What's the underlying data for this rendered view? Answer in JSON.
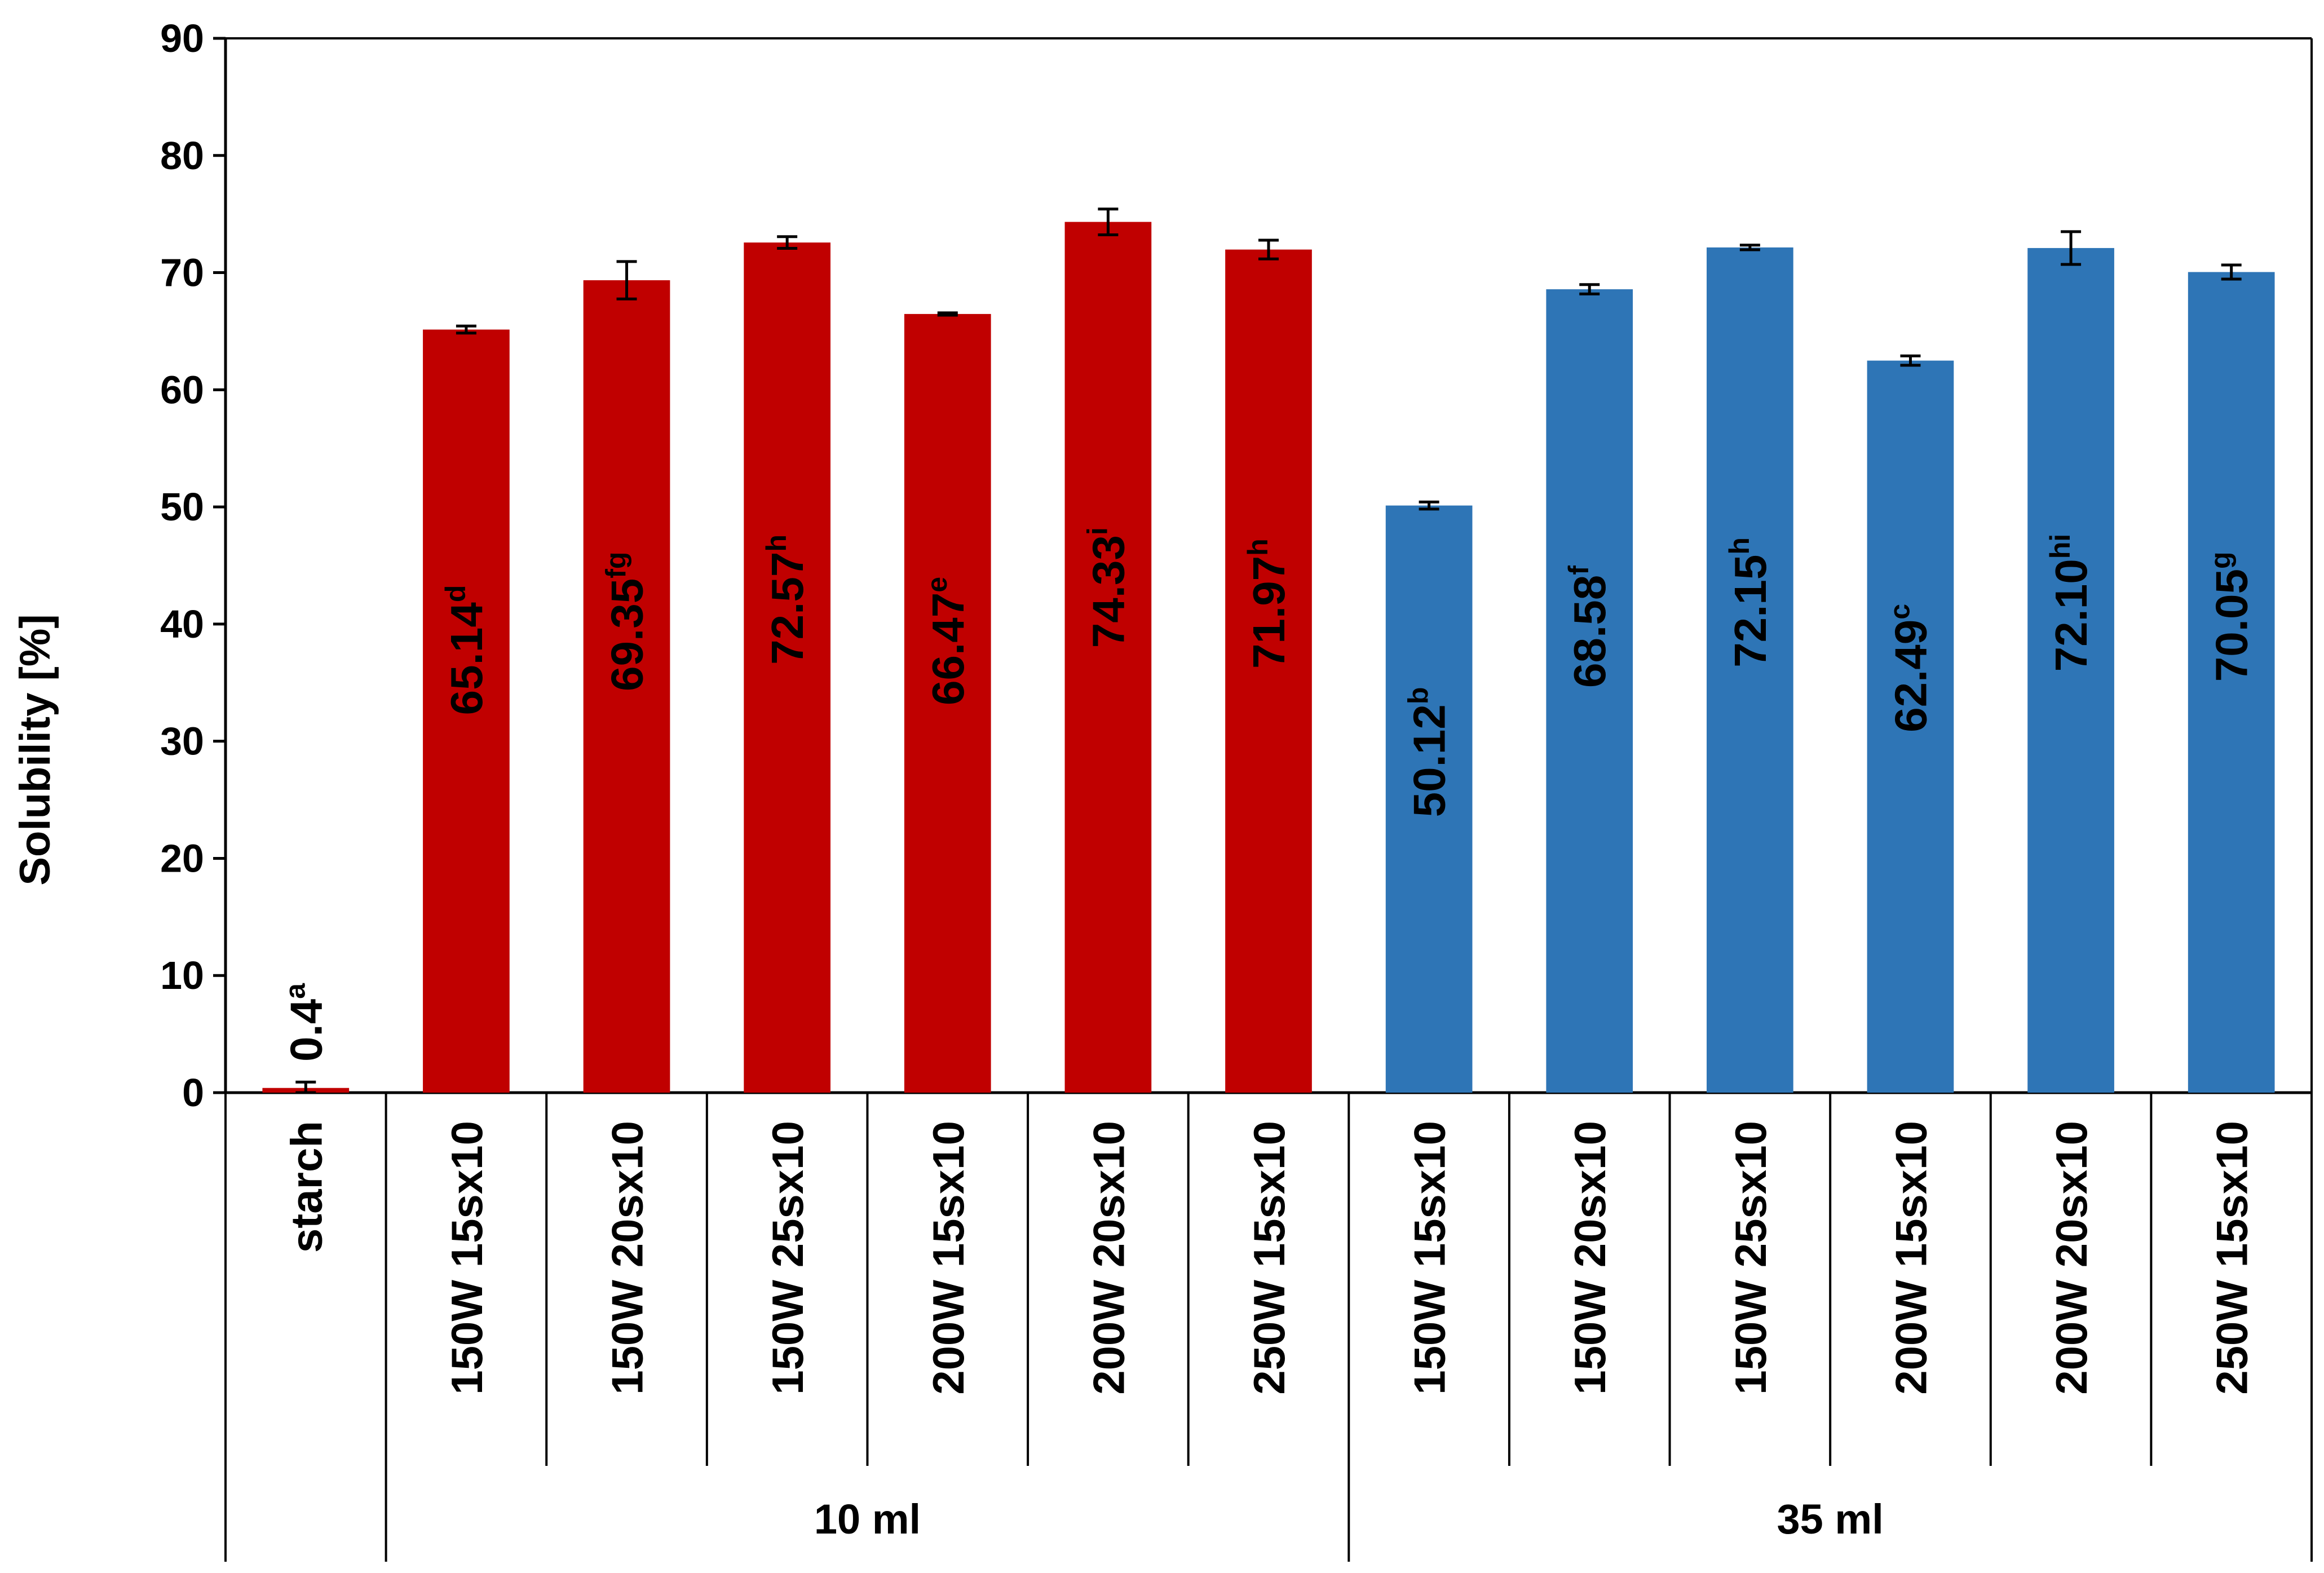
{
  "chart_data": {
    "type": "bar",
    "ylabel": "Solubility [%]",
    "ylim": [
      0,
      90
    ],
    "yticks": [
      0,
      10,
      20,
      30,
      40,
      50,
      60,
      70,
      80,
      90
    ],
    "grid": false,
    "legend": "none",
    "colors": {
      "starch": "#C00000",
      "10 ml": "#C00000",
      "35 ml": "#2E75B6"
    },
    "groups": [
      {
        "label": "",
        "start": 0,
        "end": 0
      },
      {
        "label": "10 ml",
        "start": 1,
        "end": 6
      },
      {
        "label": "35 ml",
        "start": 7,
        "end": 12
      }
    ],
    "categories": [
      "starch",
      "150W 15sx10",
      "150W 20sx10",
      "150W 25sx10",
      "200W 15sx10",
      "200W 20sx10",
      "250W 15sx10",
      "150W 15sx10",
      "150W 20sx10",
      "150W 25sx10",
      "200W 15sx10",
      "200W 20sx10",
      "250W 15sx10"
    ],
    "bars": [
      {
        "value": 0.4,
        "error": 0.5,
        "label": "0.4",
        "letter": "a",
        "group": "starch"
      },
      {
        "value": 65.14,
        "error": 0.3,
        "label": "65.14",
        "letter": "d",
        "group": "10 ml"
      },
      {
        "value": 69.35,
        "error": 1.6,
        "label": "69.35",
        "letter": "fg",
        "group": "10 ml"
      },
      {
        "value": 72.57,
        "error": 0.5,
        "label": "72.57",
        "letter": "h",
        "group": "10 ml"
      },
      {
        "value": 66.47,
        "error": 0.1,
        "label": "66.47",
        "letter": "e",
        "group": "10 ml"
      },
      {
        "value": 74.33,
        "error": 1.1,
        "label": "74.33",
        "letter": "i",
        "group": "10 ml"
      },
      {
        "value": 71.97,
        "error": 0.8,
        "label": "71.97",
        "letter": "h",
        "group": "10 ml"
      },
      {
        "value": 50.12,
        "error": 0.3,
        "label": "50.12",
        "letter": "b",
        "group": "35 ml"
      },
      {
        "value": 68.58,
        "error": 0.4,
        "label": "68.58",
        "letter": "f",
        "group": "35 ml"
      },
      {
        "value": 72.15,
        "error": 0.2,
        "label": "72.15",
        "letter": "h",
        "group": "35 ml"
      },
      {
        "value": 62.49,
        "error": 0.4,
        "label": "62.49",
        "letter": "c",
        "group": "35 ml"
      },
      {
        "value": 72.1,
        "error": 1.4,
        "label": "72.10",
        "letter": "hi",
        "group": "35 ml"
      },
      {
        "value": 70.05,
        "error": 0.6,
        "label": "70.05",
        "letter": "g",
        "group": "35 ml"
      }
    ]
  }
}
